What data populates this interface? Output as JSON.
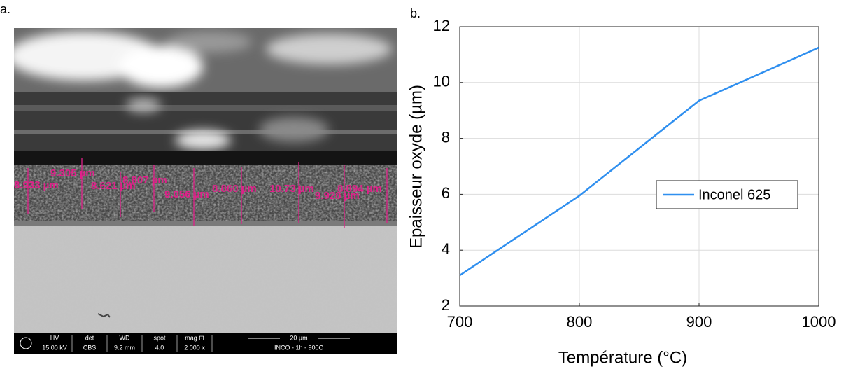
{
  "image_panel": {
    "panel_label": "a.",
    "measurements": [
      "9.305 µm",
      "8.933 µm",
      "8.621 µm",
      "8.807 µm",
      "9.056 µm",
      "8.860 µm",
      "10.73 µm",
      "8.894 µm",
      "9.928 µm"
    ],
    "info_bar": [
      {
        "head": "HV",
        "value": "15.00 kV"
      },
      {
        "head": "det",
        "value": "CBS"
      },
      {
        "head": "WD",
        "value": "9.2 mm"
      },
      {
        "head": "spot",
        "value": "4.0"
      },
      {
        "head": "mag ⊡",
        "value": "2 000 x"
      }
    ],
    "scale": "20 µm",
    "sample": "INCO - 1h - 900C"
  },
  "chart_data": {
    "type": "line",
    "panel_label": "b.",
    "x_label": "Température (°C)",
    "y_label": "Epaisseur oxyde (µm)",
    "x": [
      700,
      800,
      900,
      1000
    ],
    "series": [
      {
        "name": "Inconel 625",
        "color": "#2f8fef",
        "values": [
          3.1,
          5.95,
          9.35,
          11.25
        ]
      }
    ],
    "xlim": [
      700,
      1000
    ],
    "ylim": [
      2,
      12
    ],
    "xticks": [
      700,
      800,
      900,
      1000
    ],
    "yticks": [
      2,
      4,
      6,
      8,
      10,
      12
    ],
    "grid": true,
    "legend": "right"
  }
}
